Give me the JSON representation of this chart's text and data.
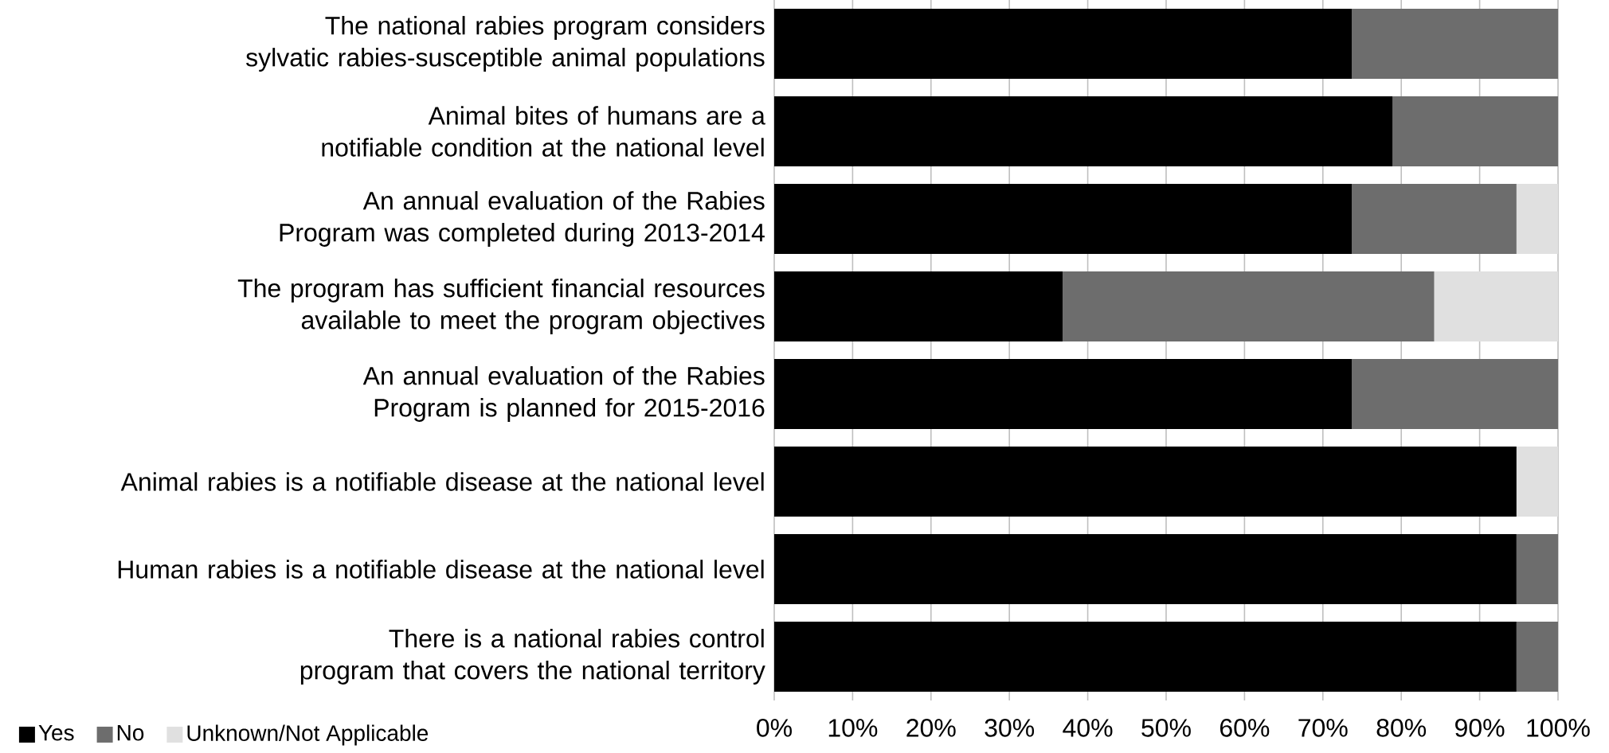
{
  "chart_data": {
    "type": "bar",
    "orientation": "horizontal",
    "stacked": true,
    "categories": [
      "The national rabies program considers sylvatic rabies-susceptible animal populations",
      "Animal bites of humans are a notifiable condition at the national level",
      "An annual evaluation of the Rabies Program was completed during 2013-2014",
      "The program has sufficient financial resources available to meet the program objectives",
      "An annual evaluation of the Rabies Program is planned for 2015-2016",
      "Animal rabies is a notifiable disease at the national level",
      "Human rabies is a notifiable disease at the national level",
      "There is a national rabies control program that covers the national territory"
    ],
    "series": [
      {
        "name": "Yes",
        "color": "#000000",
        "values": [
          73.7,
          78.9,
          73.7,
          36.8,
          73.7,
          94.7,
          94.7,
          94.7
        ]
      },
      {
        "name": "No",
        "color": "#6d6d6d",
        "values": [
          26.3,
          21.1,
          21.0,
          47.4,
          26.3,
          0,
          5.3,
          5.3
        ]
      },
      {
        "name": "Unknown/Not Applicable",
        "color": "#e0e0e0",
        "values": [
          0,
          0,
          5.3,
          15.8,
          0,
          5.3,
          0,
          0
        ]
      }
    ],
    "xlim": [
      0,
      100
    ],
    "xticks": [
      {
        "value": 0,
        "label": "0%"
      },
      {
        "value": 10,
        "label": "10%"
      },
      {
        "value": 20,
        "label": "20%"
      },
      {
        "value": 30,
        "label": "30%"
      },
      {
        "value": 40,
        "label": "40%"
      },
      {
        "value": 50,
        "label": "50%"
      },
      {
        "value": 60,
        "label": "60%"
      },
      {
        "value": 70,
        "label": "70%"
      },
      {
        "value": 80,
        "label": "80%"
      },
      {
        "value": 90,
        "label": "90%"
      },
      {
        "value": 100,
        "label": "100%"
      }
    ],
    "grid": "x",
    "legend": "bottom left"
  }
}
